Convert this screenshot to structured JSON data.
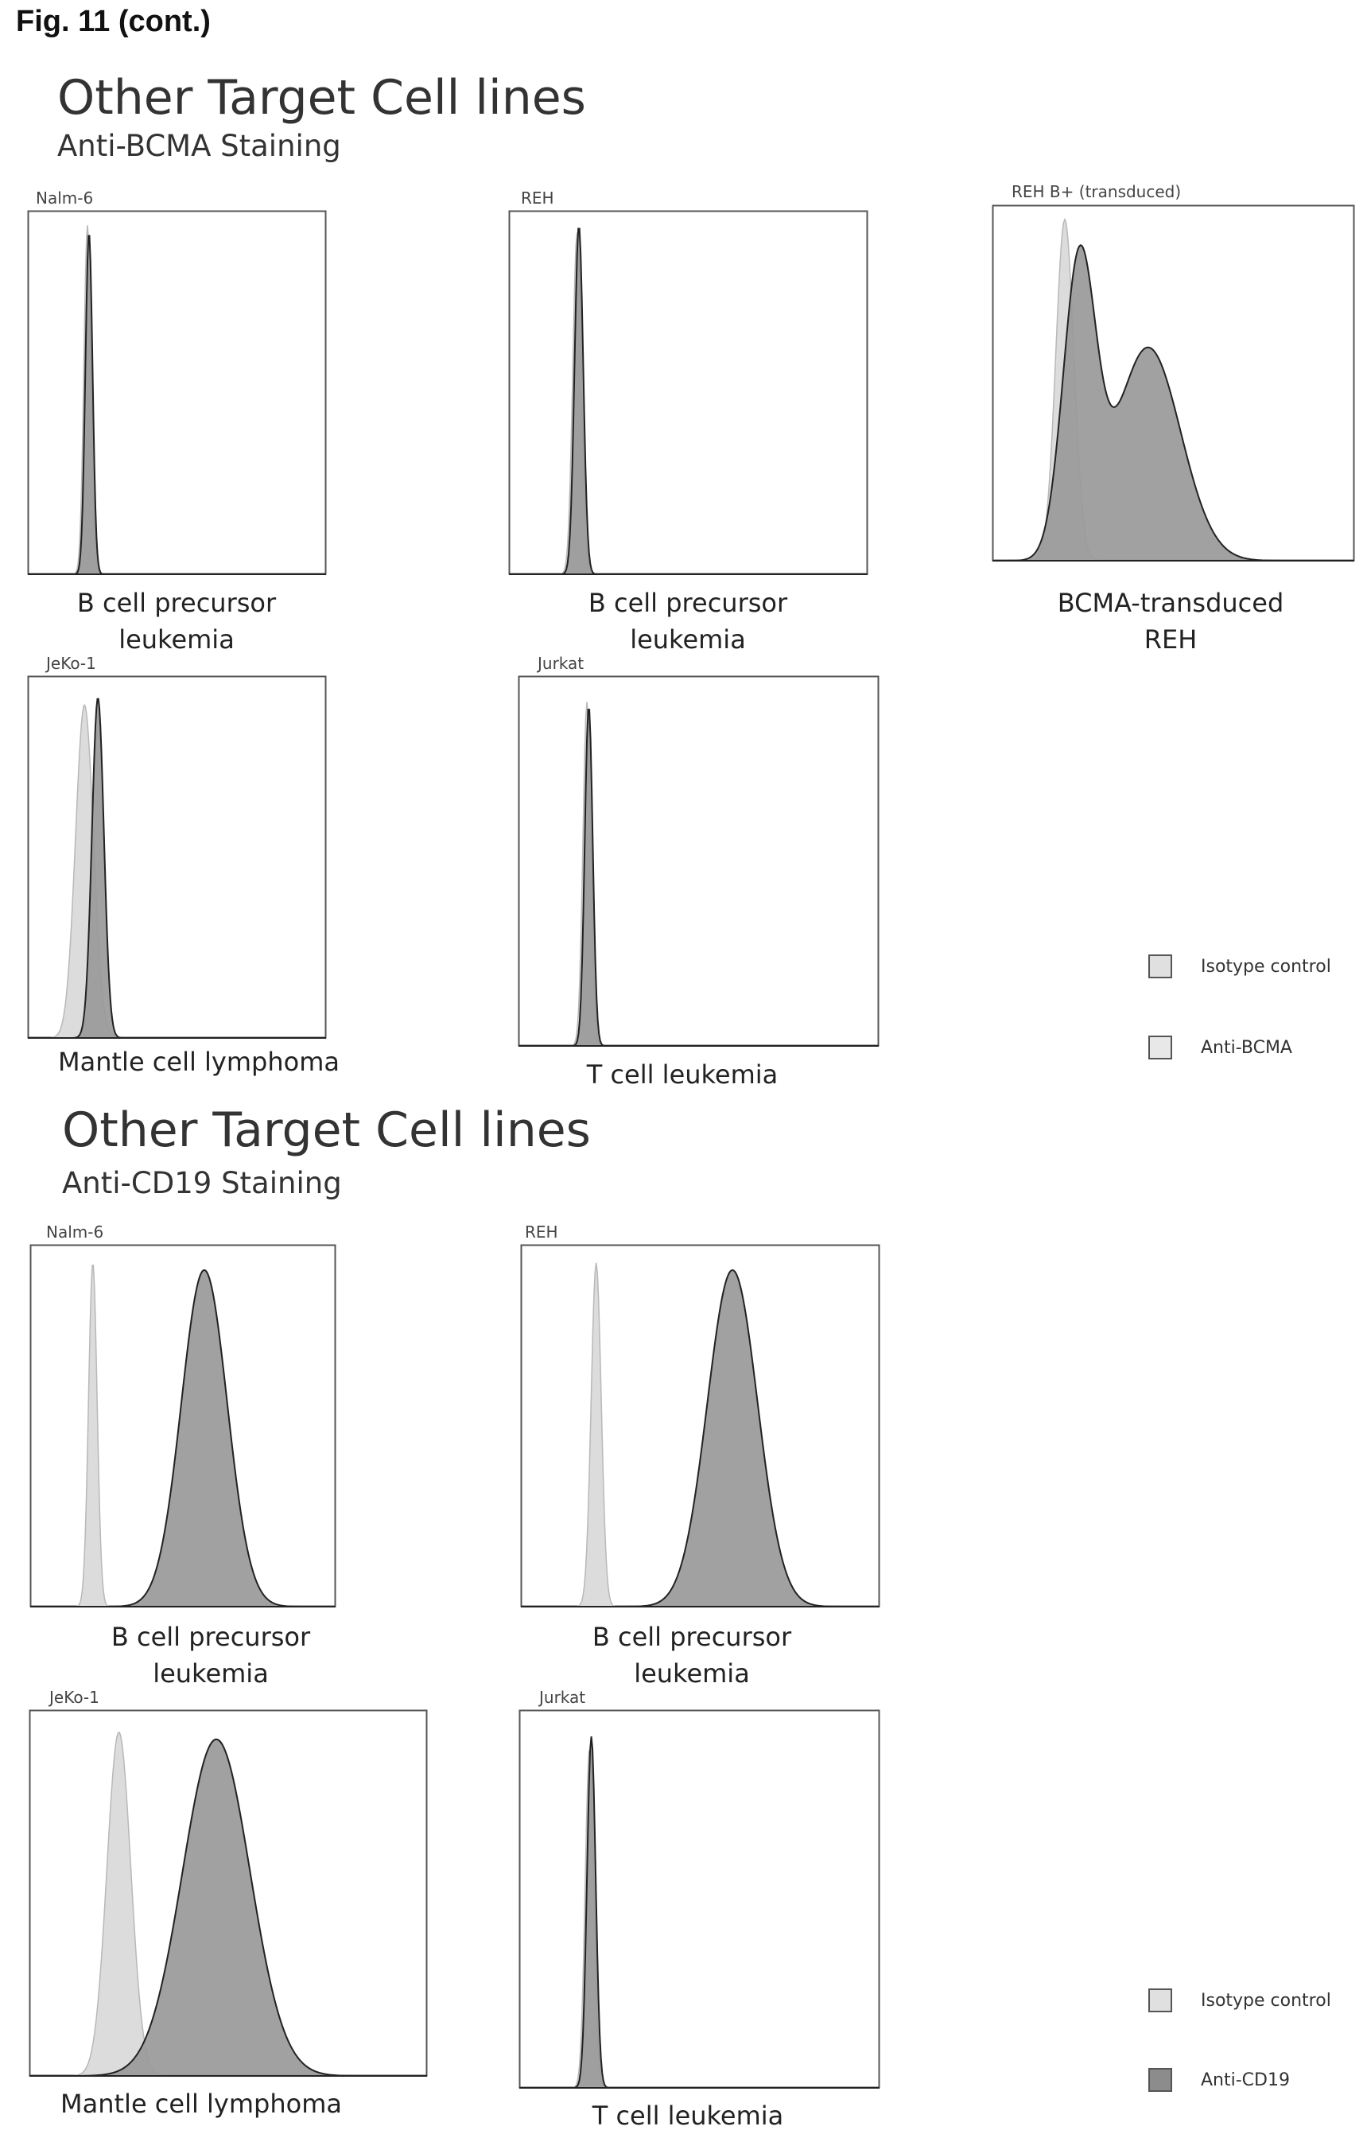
{
  "figure_label": "Fig. 11 (cont.)",
  "colors": {
    "isotype_fill": "#dcdcdc",
    "isotype_stroke": "#b8b8b8",
    "stain_fill": "#999999",
    "stain_stroke": "#222222",
    "frame": "#555555"
  },
  "sections": [
    {
      "title": "Other Target Cell lines",
      "subtitle": "Anti-BCMA Staining",
      "legend": [
        {
          "label": "Isotype control",
          "swatch": "isotype"
        },
        {
          "label": "Anti-BCMA",
          "swatch": "isotype"
        }
      ],
      "panels": [
        {
          "name": "Nalm-6",
          "caption": [
            "B cell precursor",
            "leukemia"
          ]
        },
        {
          "name": "REH",
          "caption": [
            "B cell precursor",
            "leukemia"
          ]
        },
        {
          "name": "REH B+ (transduced)",
          "caption": [
            "BCMA-transduced",
            "REH"
          ]
        },
        {
          "name": "JeKo-1",
          "caption": [
            "Mantle cell lymphoma"
          ]
        },
        {
          "name": "Jurkat",
          "caption": [
            "T cell leukemia"
          ]
        }
      ]
    },
    {
      "title": "Other Target Cell lines",
      "subtitle": "Anti-CD19 Staining",
      "legend": [
        {
          "label": "Isotype control",
          "swatch": "isotype"
        },
        {
          "label": "Anti-CD19",
          "swatch": "stain"
        }
      ],
      "panels": [
        {
          "name": "Nalm-6",
          "caption": [
            "B cell precursor",
            "leukemia"
          ]
        },
        {
          "name": "REH",
          "caption": [
            "B cell precursor",
            "leukemia"
          ]
        },
        {
          "name": "JeKo-1",
          "caption": [
            "Mantle cell lymphoma"
          ]
        },
        {
          "name": "Jurkat",
          "caption": [
            "T cell leukemia"
          ]
        }
      ]
    }
  ],
  "chart_data": [
    {
      "type": "area",
      "panel": "Nalm-6 (Anti-BCMA)",
      "xlim": [
        0,
        1
      ],
      "ylim": [
        0,
        1
      ],
      "series": [
        {
          "name": "Isotype control",
          "kind": "isotype",
          "components": [
            {
              "mu": 0.2,
              "sigma": 0.012,
              "h": 0.96
            }
          ]
        },
        {
          "name": "Anti-BCMA",
          "kind": "stain",
          "components": [
            {
              "mu": 0.205,
              "sigma": 0.012,
              "h": 0.94
            }
          ]
        }
      ]
    },
    {
      "type": "area",
      "panel": "REH (Anti-BCMA)",
      "xlim": [
        0,
        1
      ],
      "ylim": [
        0,
        1
      ],
      "series": [
        {
          "name": "Isotype control",
          "kind": "isotype",
          "components": [
            {
              "mu": 0.19,
              "sigma": 0.012,
              "h": 0.94
            }
          ]
        },
        {
          "name": "Anti-BCMA",
          "kind": "stain",
          "components": [
            {
              "mu": 0.195,
              "sigma": 0.012,
              "h": 0.96
            }
          ]
        }
      ]
    },
    {
      "type": "area",
      "panel": "REH B+ (transduced) (Anti-BCMA)",
      "xlim": [
        0,
        1
      ],
      "ylim": [
        0,
        1
      ],
      "series": [
        {
          "name": "Isotype control",
          "kind": "isotype",
          "components": [
            {
              "mu": 0.2,
              "sigma": 0.025,
              "h": 0.96
            }
          ]
        },
        {
          "name": "Anti-BCMA",
          "kind": "stain",
          "components": [
            {
              "mu": 0.24,
              "sigma": 0.045,
              "h": 0.82
            },
            {
              "mu": 0.43,
              "sigma": 0.09,
              "h": 0.6
            }
          ]
        }
      ]
    },
    {
      "type": "area",
      "panel": "JeKo-1 (Anti-BCMA)",
      "xlim": [
        0,
        1
      ],
      "ylim": [
        0,
        1
      ],
      "series": [
        {
          "name": "Isotype control",
          "kind": "isotype",
          "components": [
            {
              "mu": 0.19,
              "sigma": 0.03,
              "h": 0.92
            }
          ]
        },
        {
          "name": "Anti-BCMA",
          "kind": "stain",
          "components": [
            {
              "mu": 0.235,
              "sigma": 0.02,
              "h": 0.94
            }
          ]
        }
      ]
    },
    {
      "type": "area",
      "panel": "Jurkat (Anti-BCMA)",
      "xlim": [
        0,
        1
      ],
      "ylim": [
        0,
        1
      ],
      "series": [
        {
          "name": "Isotype control",
          "kind": "isotype",
          "components": [
            {
              "mu": 0.19,
              "sigma": 0.011,
              "h": 0.93
            }
          ]
        },
        {
          "name": "Anti-BCMA",
          "kind": "stain",
          "components": [
            {
              "mu": 0.195,
              "sigma": 0.011,
              "h": 0.92
            }
          ]
        }
      ]
    },
    {
      "type": "area",
      "panel": "Nalm-6 (Anti-CD19)",
      "xlim": [
        0,
        1
      ],
      "ylim": [
        0,
        1
      ],
      "series": [
        {
          "name": "Isotype control",
          "kind": "isotype",
          "components": [
            {
              "mu": 0.205,
              "sigma": 0.014,
              "h": 0.95
            }
          ]
        },
        {
          "name": "Anti-CD19",
          "kind": "stain",
          "components": [
            {
              "mu": 0.57,
              "sigma": 0.075,
              "h": 0.93
            }
          ]
        }
      ]
    },
    {
      "type": "area",
      "panel": "REH (Anti-CD19)",
      "xlim": [
        0,
        1
      ],
      "ylim": [
        0,
        1
      ],
      "series": [
        {
          "name": "Isotype control",
          "kind": "isotype",
          "components": [
            {
              "mu": 0.21,
              "sigma": 0.014,
              "h": 0.95
            }
          ]
        },
        {
          "name": "Anti-CD19",
          "kind": "stain",
          "components": [
            {
              "mu": 0.59,
              "sigma": 0.07,
              "h": 0.93
            }
          ]
        }
      ]
    },
    {
      "type": "area",
      "panel": "JeKo-1 (Anti-CD19)",
      "xlim": [
        0,
        1
      ],
      "ylim": [
        0,
        1
      ],
      "series": [
        {
          "name": "Isotype control",
          "kind": "isotype",
          "components": [
            {
              "mu": 0.225,
              "sigma": 0.03,
              "h": 0.94
            }
          ]
        },
        {
          "name": "Anti-CD19",
          "kind": "stain",
          "components": [
            {
              "mu": 0.47,
              "sigma": 0.085,
              "h": 0.92
            }
          ]
        }
      ]
    },
    {
      "type": "area",
      "panel": "Jurkat (Anti-CD19)",
      "xlim": [
        0,
        1
      ],
      "ylim": [
        0,
        1
      ],
      "series": [
        {
          "name": "Isotype control",
          "kind": "isotype",
          "components": [
            {
              "mu": 0.195,
              "sigma": 0.012,
              "h": 0.9
            }
          ]
        },
        {
          "name": "Anti-CD19",
          "kind": "stain",
          "components": [
            {
              "mu": 0.2,
              "sigma": 0.012,
              "h": 0.93
            }
          ]
        }
      ]
    }
  ]
}
